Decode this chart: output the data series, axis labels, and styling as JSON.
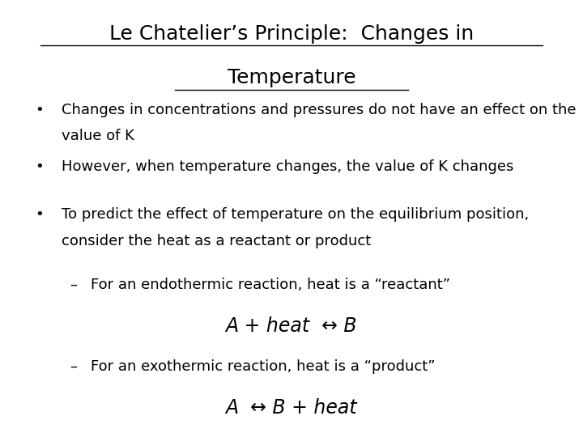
{
  "title_line1": "Le Chatelier’s Principle:  Changes in",
  "title_line2": "Temperature",
  "background_color": "#ffffff",
  "text_color": "#000000",
  "bullet1_line1": "Changes in concentrations and pressures do not have an effect on the",
  "bullet1_line2": "value of K",
  "bullet2": "However, when temperature changes, the value of K changes",
  "bullet3_line1": "To predict the effect of temperature on the equilibrium position,",
  "bullet3_line2": "consider the heat as a reactant or product",
  "sub1": "For an endothermic reaction, heat is a “reactant”",
  "eq1": "A + heat  ↔ B",
  "sub2": "For an exothermic reaction, heat is a “product”",
  "eq2": "A  ↔ B + heat",
  "title_fontsize": 18,
  "body_fontsize": 13,
  "eq_fontsize": 17,
  "sub_fontsize": 13
}
